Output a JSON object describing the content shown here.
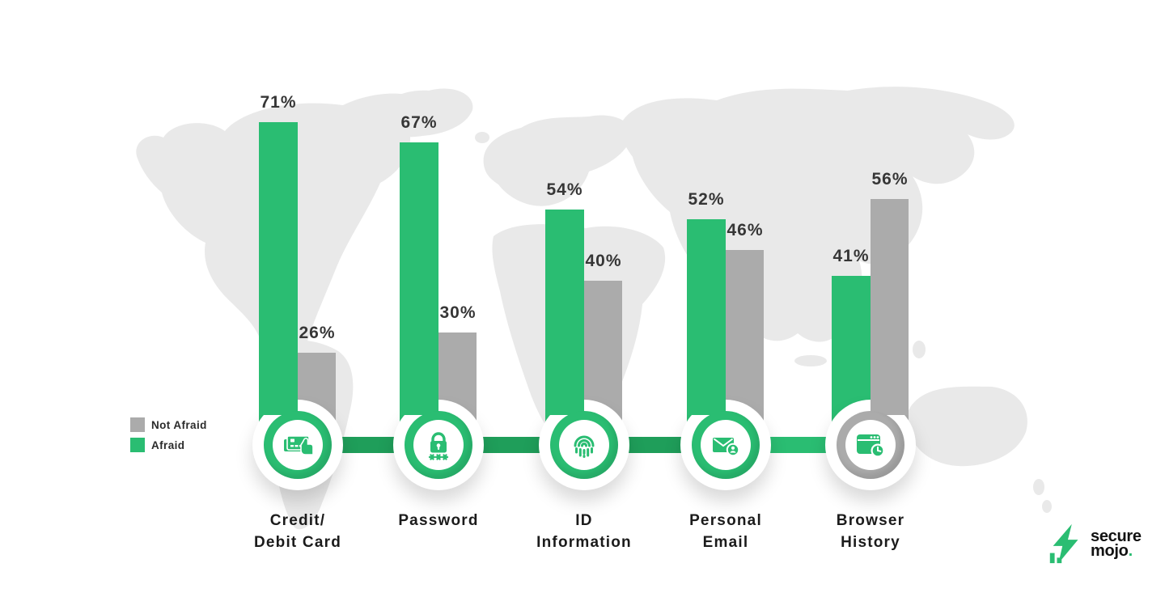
{
  "chart_data": {
    "type": "bar",
    "categories": [
      "Credit/ Debit Card",
      "Password",
      "ID Information",
      "Personal Email",
      "Browser History"
    ],
    "series": [
      {
        "name": "Afraid",
        "values": [
          71,
          67,
          54,
          52,
          41
        ],
        "color": "#2ABD72"
      },
      {
        "name": "Not Afraid",
        "values": [
          26,
          30,
          40,
          46,
          56
        ],
        "color": "#ABABAB"
      }
    ],
    "value_format": "percent",
    "data_labels": {
      "afraid": [
        "71%",
        "67%",
        "54%",
        "52%",
        "41%"
      ],
      "not_afraid": [
        "26%",
        "30%",
        "40%",
        "46%",
        "56%"
      ]
    },
    "axes_shown": false,
    "grid": false,
    "legend_position": "middle-left",
    "background": "world-map-silhouette"
  },
  "groups": [
    {
      "line1": "Credit/",
      "line2": "Debit Card",
      "afraid_label": "71%",
      "not_afraid_label": "26%",
      "icon": "credit-card-hand"
    },
    {
      "line1": "Password",
      "line2": "",
      "afraid_label": "67%",
      "not_afraid_label": "30%",
      "icon": "password-lock"
    },
    {
      "line1": "ID",
      "line2": "Information",
      "afraid_label": "54%",
      "not_afraid_label": "40%",
      "icon": "fingerprint"
    },
    {
      "line1": "Personal",
      "line2": "Email",
      "afraid_label": "52%",
      "not_afraid_label": "46%",
      "icon": "email-user"
    },
    {
      "line1": "Browser",
      "line2": "History",
      "afraid_label": "41%",
      "not_afraid_label": "56%",
      "icon": "browser-clock"
    }
  ],
  "legend": {
    "items": [
      {
        "label": "Not Afraid",
        "color": "#ABABAB"
      },
      {
        "label": "Afraid",
        "color": "#2ABD72"
      }
    ]
  },
  "logo": {
    "line1": "secure",
    "line2": "mojo",
    "dot": "."
  },
  "colors": {
    "afraid_green": "#2ABD72",
    "not_afraid_gray": "#ABABAB",
    "connector_dark_green": "#1F9E5A",
    "map_gray": "#E9E9E9",
    "text_dark": "#363636"
  }
}
